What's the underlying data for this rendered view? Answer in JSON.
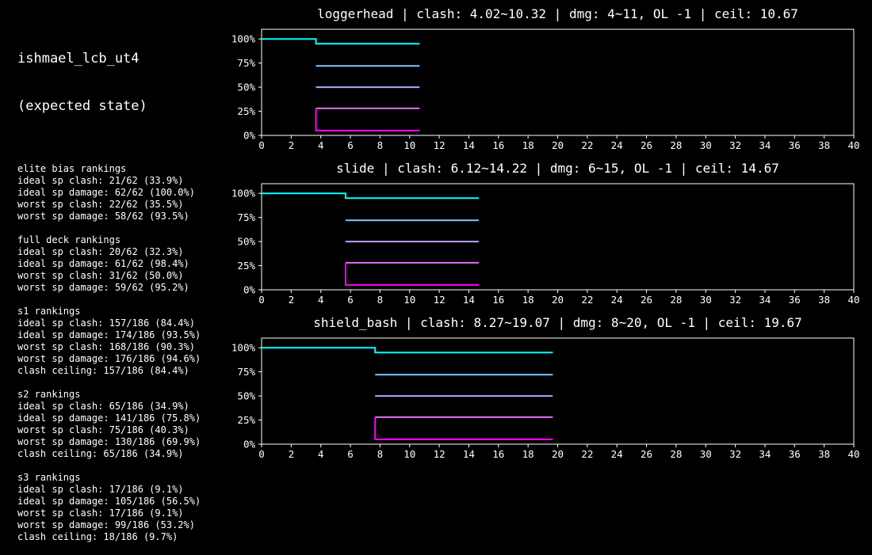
{
  "panel": {
    "title_line1": "ishmael_lcb_ut4",
    "title_line2": "(expected state)",
    "sections": [
      {
        "heading": "elite bias rankings",
        "lines": [
          "ideal sp clash: 21/62 (33.9%)",
          "ideal sp damage: 62/62 (100.0%)",
          "worst sp clash: 22/62 (35.5%)",
          "worst sp damage: 58/62 (93.5%)"
        ]
      },
      {
        "heading": "full deck rankings",
        "lines": [
          "ideal sp clash: 20/62 (32.3%)",
          "ideal sp damage: 61/62 (98.4%)",
          "worst sp clash: 31/62 (50.0%)",
          "worst sp damage: 59/62 (95.2%)"
        ]
      },
      {
        "heading": "s1 rankings",
        "lines": [
          "ideal sp clash: 157/186 (84.4%)",
          "ideal sp damage: 174/186 (93.5%)",
          "worst sp clash: 168/186 (90.3%)",
          "worst sp damage: 176/186 (94.6%)",
          "clash ceiling: 157/186 (84.4%)"
        ]
      },
      {
        "heading": "s2 rankings",
        "lines": [
          "ideal sp clash: 65/186 (34.9%)",
          "ideal sp damage: 141/186 (75.8%)",
          "worst sp clash: 75/186 (40.3%)",
          "worst sp damage: 130/186 (69.9%)",
          "clash ceiling: 65/186 (34.9%)"
        ]
      },
      {
        "heading": "s3 rankings",
        "lines": [
          "ideal sp clash: 17/186 (9.1%)",
          "ideal sp damage: 105/186 (56.5%)",
          "worst sp clash: 17/186 (9.1%)",
          "worst sp damage: 99/186 (53.2%)",
          "clash ceiling: 18/186 (9.7%)"
        ]
      }
    ]
  },
  "chart_data": [
    {
      "type": "line",
      "title": "loggerhead | clash: 4.02~10.32 | dmg: 4~11, OL -1 | ceil: 10.67",
      "xlim": [
        0,
        40
      ],
      "ylim": [
        0,
        1.1
      ],
      "xticks": [
        0,
        2,
        4,
        6,
        8,
        10,
        12,
        14,
        16,
        18,
        20,
        22,
        24,
        26,
        28,
        30,
        32,
        34,
        36,
        38,
        40
      ],
      "yticks": [
        0,
        0.25,
        0.5,
        0.75,
        1.0
      ],
      "yticklabels": [
        "0%",
        "25%",
        "50%",
        "75%",
        "100%"
      ],
      "grid": false,
      "series": [
        {
          "color": "#00ffff",
          "points": [
            [
              0,
              1.0
            ],
            [
              3.67,
              1.0
            ],
            [
              3.67,
              0.95
            ],
            [
              10.67,
              0.95
            ]
          ]
        },
        {
          "color": "#7fc8ff",
          "points": [
            [
              3.67,
              0.72
            ],
            [
              10.67,
              0.72
            ]
          ]
        },
        {
          "color": "#bf9fff",
          "points": [
            [
              3.67,
              0.5
            ],
            [
              10.67,
              0.5
            ]
          ]
        },
        {
          "color": "#e070ff",
          "points": [
            [
              3.67,
              0.28
            ],
            [
              10.67,
              0.28
            ]
          ]
        },
        {
          "color": "#ff00ff",
          "points": [
            [
              3.67,
              0.28
            ],
            [
              3.67,
              0.05
            ],
            [
              10.67,
              0.05
            ]
          ]
        }
      ]
    },
    {
      "type": "line",
      "title": "slide | clash: 6.12~14.22 | dmg: 6~15, OL -1 | ceil: 14.67",
      "xlim": [
        0,
        40
      ],
      "ylim": [
        0,
        1.1
      ],
      "xticks": [
        0,
        2,
        4,
        6,
        8,
        10,
        12,
        14,
        16,
        18,
        20,
        22,
        24,
        26,
        28,
        30,
        32,
        34,
        36,
        38,
        40
      ],
      "yticks": [
        0,
        0.25,
        0.5,
        0.75,
        1.0
      ],
      "yticklabels": [
        "0%",
        "25%",
        "50%",
        "75%",
        "100%"
      ],
      "grid": false,
      "series": [
        {
          "color": "#00ffff",
          "points": [
            [
              0,
              1.0
            ],
            [
              5.67,
              1.0
            ],
            [
              5.67,
              0.95
            ],
            [
              14.67,
              0.95
            ]
          ]
        },
        {
          "color": "#7fc8ff",
          "points": [
            [
              5.67,
              0.72
            ],
            [
              14.67,
              0.72
            ]
          ]
        },
        {
          "color": "#bf9fff",
          "points": [
            [
              5.67,
              0.5
            ],
            [
              14.67,
              0.5
            ]
          ]
        },
        {
          "color": "#e070ff",
          "points": [
            [
              5.67,
              0.28
            ],
            [
              14.67,
              0.28
            ]
          ]
        },
        {
          "color": "#ff00ff",
          "points": [
            [
              5.67,
              0.28
            ],
            [
              5.67,
              0.05
            ],
            [
              14.67,
              0.05
            ]
          ]
        }
      ]
    },
    {
      "type": "line",
      "title": "shield_bash | clash: 8.27~19.07 | dmg: 8~20, OL -1 | ceil: 19.67",
      "xlim": [
        0,
        40
      ],
      "ylim": [
        0,
        1.1
      ],
      "xticks": [
        0,
        2,
        4,
        6,
        8,
        10,
        12,
        14,
        16,
        18,
        20,
        22,
        24,
        26,
        28,
        30,
        32,
        34,
        36,
        38,
        40
      ],
      "yticks": [
        0,
        0.25,
        0.5,
        0.75,
        1.0
      ],
      "yticklabels": [
        "0%",
        "25%",
        "50%",
        "75%",
        "100%"
      ],
      "grid": false,
      "series": [
        {
          "color": "#00ffff",
          "points": [
            [
              0,
              1.0
            ],
            [
              7.67,
              1.0
            ],
            [
              7.67,
              0.95
            ],
            [
              19.67,
              0.95
            ]
          ]
        },
        {
          "color": "#7fc8ff",
          "points": [
            [
              7.67,
              0.72
            ],
            [
              19.67,
              0.72
            ]
          ]
        },
        {
          "color": "#bf9fff",
          "points": [
            [
              7.67,
              0.5
            ],
            [
              19.67,
              0.5
            ]
          ]
        },
        {
          "color": "#e070ff",
          "points": [
            [
              7.67,
              0.28
            ],
            [
              19.67,
              0.28
            ]
          ]
        },
        {
          "color": "#ff00ff",
          "points": [
            [
              7.67,
              0.28
            ],
            [
              7.67,
              0.05
            ],
            [
              19.67,
              0.05
            ]
          ]
        }
      ]
    }
  ]
}
